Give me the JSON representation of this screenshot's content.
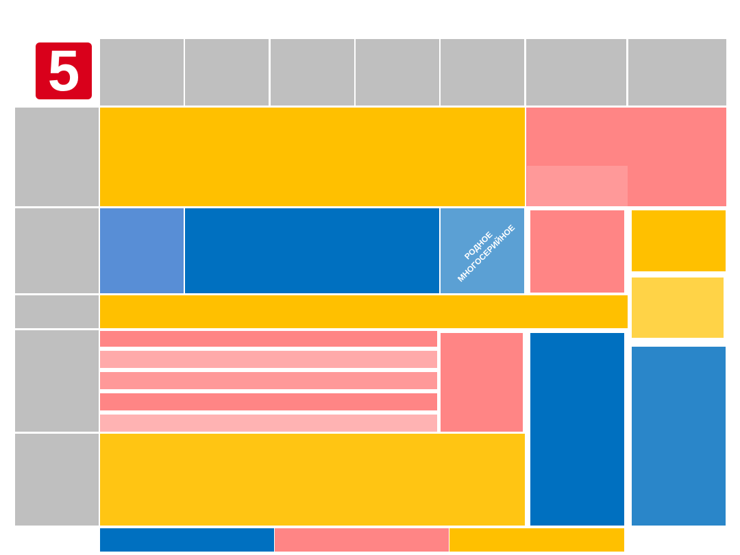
{
  "logo": {
    "text": "5"
  },
  "genre_label": {
    "lines": [
      "РОДНОЕ",
      "МНОГОСЕРИЙНОЕ"
    ]
  }
}
